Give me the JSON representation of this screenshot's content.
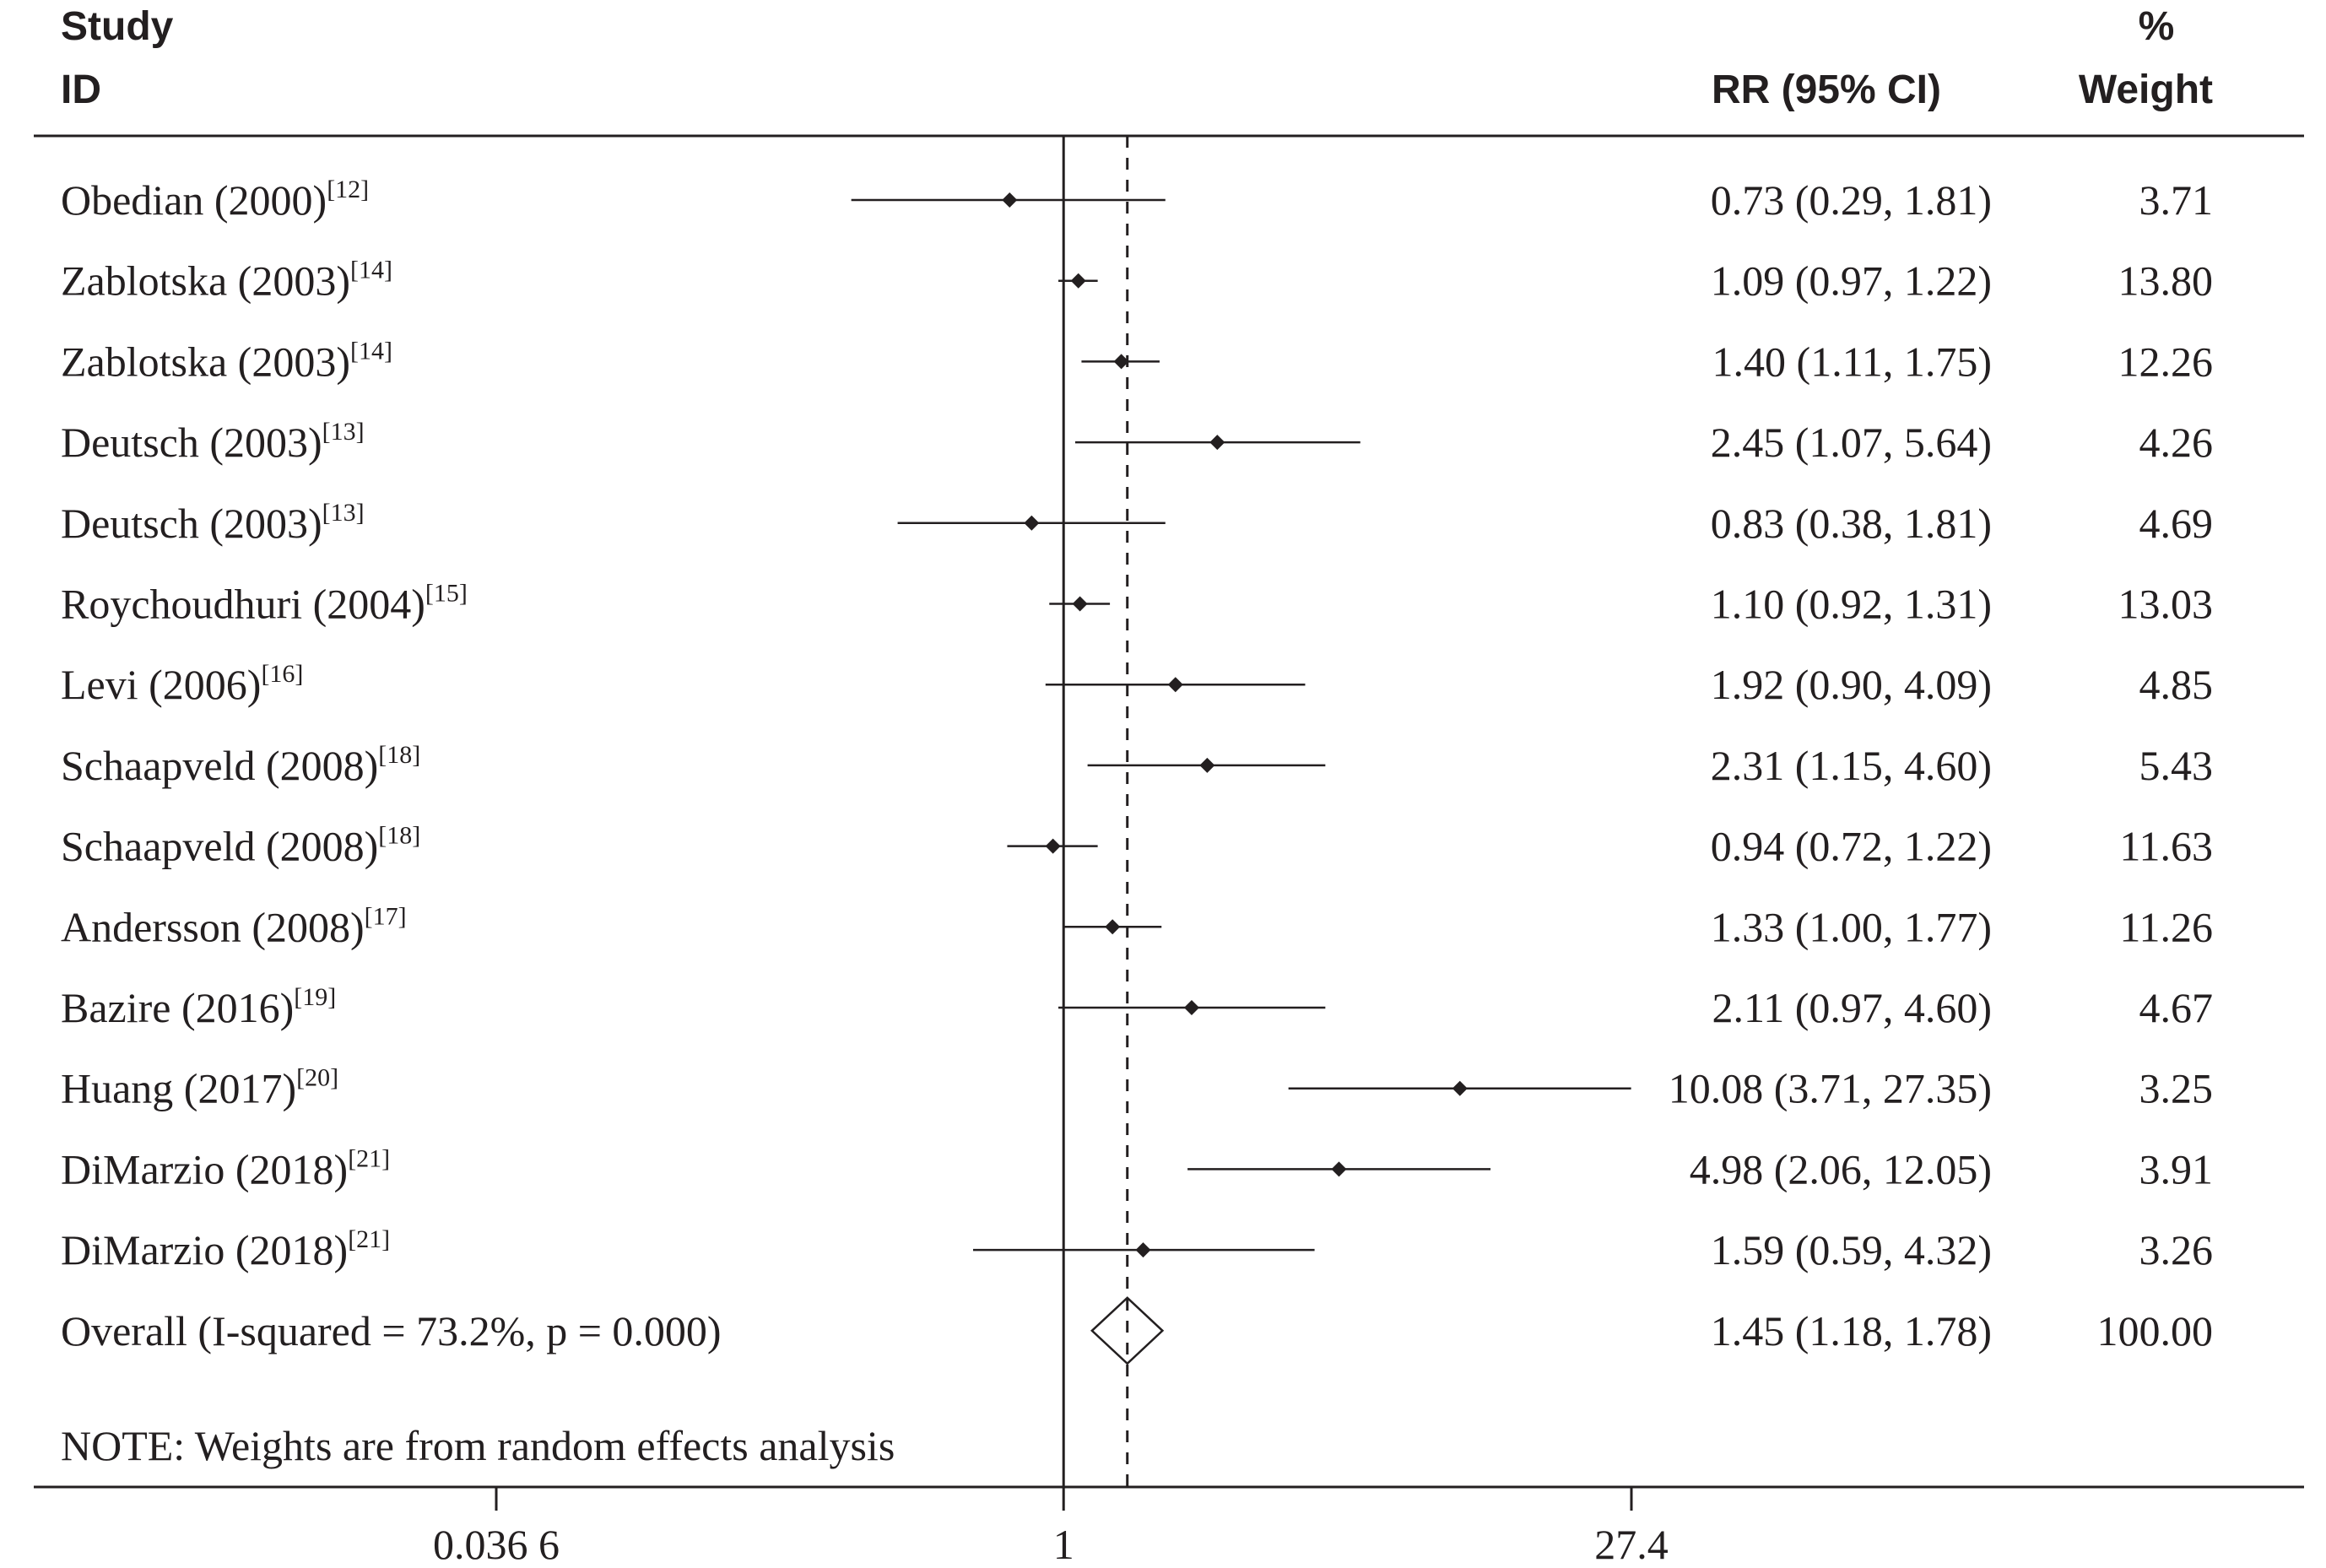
{
  "chart_data": {
    "type": "forest",
    "scale": "log",
    "headers": {
      "study_line1": "Study",
      "study_line2": "ID",
      "effect": "RR (95% CI)",
      "weight_line1": "%",
      "weight_line2": "Weight"
    },
    "studies": [
      {
        "name": "Obedian (2000)",
        "ref": "[12]",
        "rr": 0.73,
        "lo": 0.29,
        "hi": 1.81,
        "ci_text": "0.73 (0.29, 1.81)",
        "weight": "3.71"
      },
      {
        "name": "Zablotska (2003)",
        "ref": "[14]",
        "rr": 1.09,
        "lo": 0.97,
        "hi": 1.22,
        "ci_text": "1.09 (0.97, 1.22)",
        "weight": "13.80"
      },
      {
        "name": "Zablotska (2003)",
        "ref": "[14]",
        "rr": 1.4,
        "lo": 1.11,
        "hi": 1.75,
        "ci_text": "1.40 (1.11, 1.75)",
        "weight": "12.26"
      },
      {
        "name": "Deutsch (2003)",
        "ref": "[13]",
        "rr": 2.45,
        "lo": 1.07,
        "hi": 5.64,
        "ci_text": "2.45 (1.07, 5.64)",
        "weight": "4.26"
      },
      {
        "name": "Deutsch (2003)",
        "ref": "[13]",
        "rr": 0.83,
        "lo": 0.38,
        "hi": 1.81,
        "ci_text": "0.83 (0.38, 1.81)",
        "weight": "4.69"
      },
      {
        "name": "Roychoudhuri (2004)",
        "ref": "[15]",
        "rr": 1.1,
        "lo": 0.92,
        "hi": 1.31,
        "ci_text": "1.10 (0.92, 1.31)",
        "weight": "13.03"
      },
      {
        "name": "Levi (2006)",
        "ref": "[16]",
        "rr": 1.92,
        "lo": 0.9,
        "hi": 4.09,
        "ci_text": "1.92 (0.90, 4.09)",
        "weight": "4.85"
      },
      {
        "name": "Schaapveld (2008)",
        "ref": "[18]",
        "rr": 2.31,
        "lo": 1.15,
        "hi": 4.6,
        "ci_text": "2.31 (1.15, 4.60)",
        "weight": "5.43"
      },
      {
        "name": "Schaapveld (2008)",
        "ref": "[18]",
        "rr": 0.94,
        "lo": 0.72,
        "hi": 1.22,
        "ci_text": "0.94 (0.72, 1.22)",
        "weight": "11.63"
      },
      {
        "name": "Andersson (2008)",
        "ref": "[17]",
        "rr": 1.33,
        "lo": 1.0,
        "hi": 1.77,
        "ci_text": "1.33 (1.00, 1.77)",
        "weight": "11.26"
      },
      {
        "name": "Bazire (2016)",
        "ref": "[19]",
        "rr": 2.11,
        "lo": 0.97,
        "hi": 4.6,
        "ci_text": "2.11 (0.97, 4.60)",
        "weight": "4.67"
      },
      {
        "name": "Huang (2017)",
        "ref": "[20]",
        "rr": 10.08,
        "lo": 3.71,
        "hi": 27.35,
        "ci_text": "10.08 (3.71, 27.35)",
        "weight": "3.25"
      },
      {
        "name": "DiMarzio (2018)",
        "ref": "[21]",
        "rr": 4.98,
        "lo": 2.06,
        "hi": 12.05,
        "ci_text": "4.98 (2.06, 12.05)",
        "weight": "3.91"
      },
      {
        "name": "DiMarzio (2018)",
        "ref": "[21]",
        "rr": 1.59,
        "lo": 0.59,
        "hi": 4.32,
        "ci_text": "1.59 (0.59, 4.32)",
        "weight": "3.26"
      }
    ],
    "overall": {
      "label": "Overall  (I-squared = 73.2%, p = 0.000)",
      "rr": 1.45,
      "lo": 1.18,
      "hi": 1.78,
      "ci_text": "1.45 (1.18, 1.78)",
      "weight": "100.00"
    },
    "note": "NOTE: Weights are from random effects analysis",
    "x_ticks": [
      {
        "value": 0.0366,
        "label": "0.036 6"
      },
      {
        "value": 1,
        "label": "1"
      },
      {
        "value": 27.4,
        "label": "27.4"
      }
    ],
    "xlim": [
      0.0366,
      27.4
    ],
    "null_line": 1,
    "reference_line": 1.45
  }
}
